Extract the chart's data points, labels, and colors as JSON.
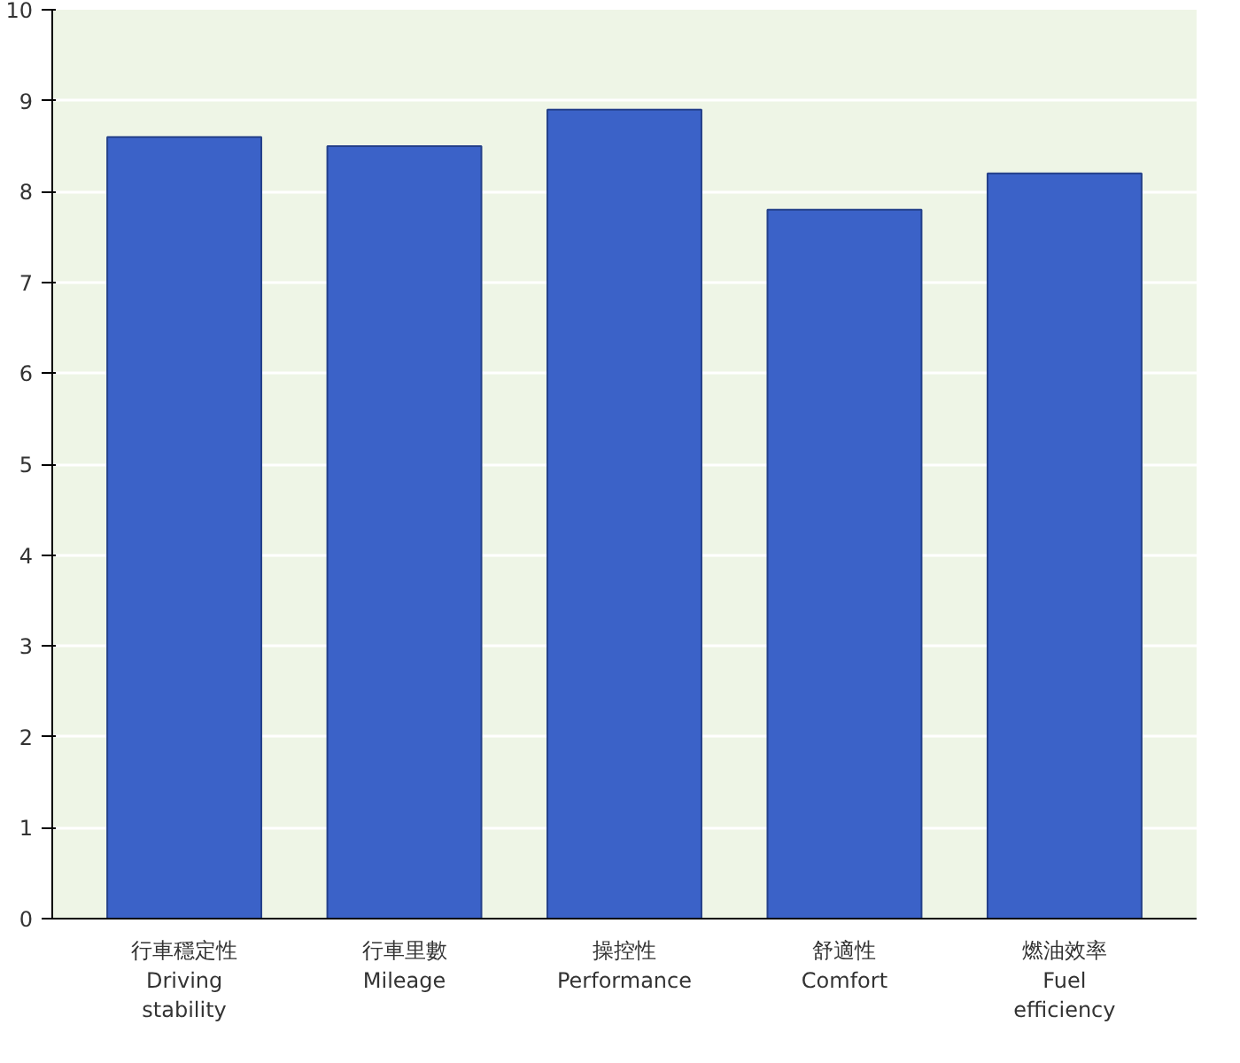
{
  "chart_data": {
    "type": "bar",
    "categories": [
      "行車穩定性\nDriving\nstability",
      "行車里數\nMileage",
      "操控性\nPerformance",
      "舒適性\nComfort",
      "燃油效率\nFuel\nefficiency"
    ],
    "values": [
      8.6,
      8.5,
      8.9,
      7.8,
      8.2
    ],
    "color": "#3b62c8",
    "ylim": [
      0,
      10
    ],
    "yticks": [
      0,
      1,
      2,
      3,
      4,
      5,
      6,
      7,
      8,
      9,
      10
    ],
    "grid": "y"
  }
}
